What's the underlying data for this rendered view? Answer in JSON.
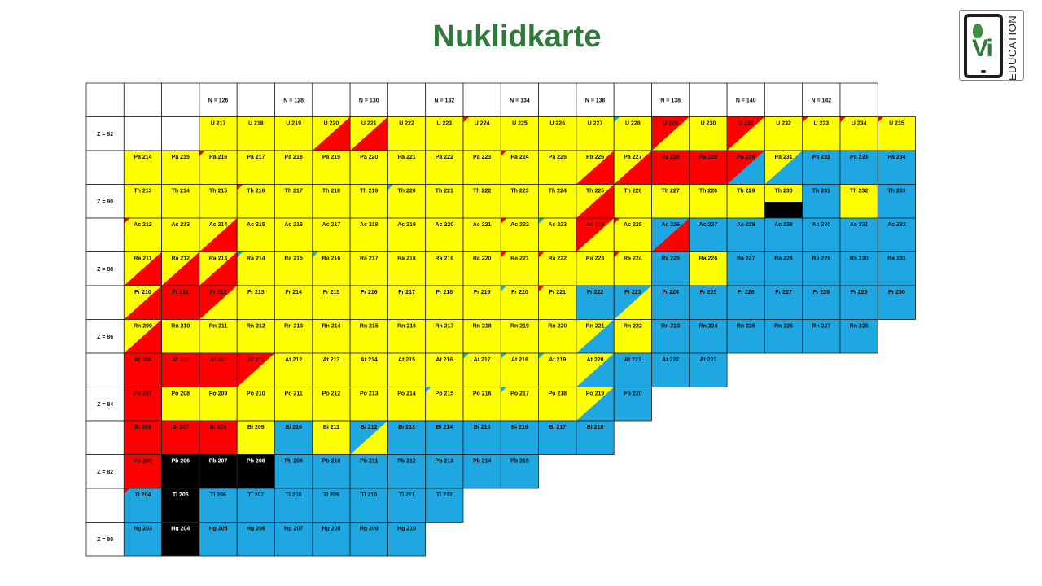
{
  "title": "Nuklidkarte",
  "logo": {
    "letters": "Vi",
    "subtitle": "EDUCATION"
  },
  "colors": {
    "Y": "#ffff00",
    "R": "#ff0000",
    "B": "#1ea7e1",
    "K": "#000000",
    "W": "#ffffff",
    "grid": "#222222",
    "title": "#2f7a3b"
  },
  "legend_note": "cell codes: Y yellow, R red, B blue, K black; two letters = split cell (upper-left / lower-right); a third letter marks the corner triangle colour",
  "chart_data": {
    "type": "table",
    "n_headers": [
      "",
      "",
      "",
      "N = 126",
      "",
      "N = 128",
      "",
      "N = 130",
      "",
      "N = 132",
      "",
      "N = 134",
      "",
      "N = 136",
      "",
      "N = 138",
      "",
      "N = 140",
      "",
      "N = 142",
      ""
    ],
    "rows": [
      {
        "z": "Z = 92",
        "start": 3,
        "cells": [
          [
            "U 217",
            "Y"
          ],
          [
            "U 218",
            "Y"
          ],
          [
            "U 219",
            "Y"
          ],
          [
            "U 220",
            "YR"
          ],
          [
            "U 221",
            "YR"
          ],
          [
            "U 222",
            "Y"
          ],
          [
            "U 223",
            "Y"
          ],
          [
            "U 224",
            "Y:R"
          ],
          [
            "U 225",
            "Y"
          ],
          [
            "U 226",
            "Y"
          ],
          [
            "U 227",
            "Y"
          ],
          [
            "U 228",
            "Y:B"
          ],
          [
            "U 229",
            "RY"
          ],
          [
            "U 230",
            "Y"
          ],
          [
            "U 231",
            "RY"
          ],
          [
            "U 232",
            "Y"
          ],
          [
            "U 233",
            "Y:R"
          ],
          [
            "U 234",
            "Y:R"
          ],
          [
            "U 235",
            "Y:R"
          ]
        ]
      },
      {
        "z": "",
        "start": 1,
        "cells": [
          [
            "Pa 214",
            "Y"
          ],
          [
            "Pa 215",
            "Y"
          ],
          [
            "Pa 216",
            "Y:R"
          ],
          [
            "Pa 217",
            "Y"
          ],
          [
            "Pa 218",
            "Y"
          ],
          [
            "Pa 219",
            "Y"
          ],
          [
            "Pa 220",
            "Y"
          ],
          [
            "Pa 221",
            "Y"
          ],
          [
            "Pa 222",
            "Y"
          ],
          [
            "Pa 223",
            "Y"
          ],
          [
            "Pa 224",
            "Y:R"
          ],
          [
            "Pa 225",
            "Y"
          ],
          [
            "Pa 226",
            "YR"
          ],
          [
            "Pa 227",
            "YR"
          ],
          [
            "Pa 228",
            "R"
          ],
          [
            "Pa 229",
            "R"
          ],
          [
            "Pa 230",
            "RB"
          ],
          [
            "Pa 231",
            "YB"
          ],
          [
            "Pa 232",
            "B"
          ],
          [
            "Pa 233",
            "B"
          ],
          [
            "Pa 234",
            "B"
          ]
        ]
      },
      {
        "z": "Z = 90",
        "start": 1,
        "cells": [
          [
            "Th 213",
            "Y"
          ],
          [
            "Th 214",
            "Y"
          ],
          [
            "Th 215",
            "Y"
          ],
          [
            "Th 216",
            "Y:R"
          ],
          [
            "Th 217",
            "Y"
          ],
          [
            "Th 218",
            "Y"
          ],
          [
            "Th 219",
            "Y"
          ],
          [
            "Th 220",
            "Y:B"
          ],
          [
            "Th 221",
            "Y"
          ],
          [
            "Th 222",
            "Y"
          ],
          [
            "Th 223",
            "Y"
          ],
          [
            "Th 224",
            "Y"
          ],
          [
            "Th 225",
            "YR"
          ],
          [
            "Th 226",
            "Y"
          ],
          [
            "Th 227",
            "Y"
          ],
          [
            "Th 228",
            "Y"
          ],
          [
            "Th 229",
            "Y"
          ],
          [
            "Th 230",
            "Y/K"
          ],
          [
            "Th 231",
            "B"
          ],
          [
            "Th 232",
            "Y"
          ],
          [
            "Th 233",
            "B"
          ]
        ]
      },
      {
        "z": "",
        "start": 1,
        "cells": [
          [
            "Ac 212",
            "Y:R"
          ],
          [
            "Ac 213",
            "Y"
          ],
          [
            "Ac 214",
            "YR"
          ],
          [
            "Ac 215",
            "Y"
          ],
          [
            "Ac 216",
            "Y"
          ],
          [
            "Ac 217",
            "Y"
          ],
          [
            "Ac 218",
            "Y"
          ],
          [
            "Ac 219",
            "Y"
          ],
          [
            "Ac 220",
            "Y"
          ],
          [
            "Ac 221",
            "Y"
          ],
          [
            "Ac 222",
            "Y:R"
          ],
          [
            "Ac 223",
            "Y:B"
          ],
          [
            "Ac 224",
            "RY"
          ],
          [
            "Ac 225",
            "Y:R"
          ],
          [
            "Ac 226",
            "BR"
          ],
          [
            "Ac 227",
            "B"
          ],
          [
            "Ac 228",
            "B"
          ],
          [
            "Ac 229",
            "B"
          ],
          [
            "Ac 230",
            "B"
          ],
          [
            "Ac 231",
            "B"
          ],
          [
            "Ac 232",
            "B"
          ]
        ]
      },
      {
        "z": "Z = 88",
        "start": 1,
        "cells": [
          [
            "Ra 211",
            "YR"
          ],
          [
            "Ra 212",
            "YR"
          ],
          [
            "Ra 213",
            "YR"
          ],
          [
            "Ra 214",
            "Y:B"
          ],
          [
            "Ra 215",
            "Y"
          ],
          [
            "Ra 216",
            "Y:B"
          ],
          [
            "Ra 217",
            "Y"
          ],
          [
            "Ra 218",
            "Y"
          ],
          [
            "Ra 219",
            "Y"
          ],
          [
            "Ra 220",
            "Y"
          ],
          [
            "Ra 221",
            "Y:R"
          ],
          [
            "Ra 222",
            "Y:R"
          ],
          [
            "Ra 223",
            "Y"
          ],
          [
            "Ra 224",
            "Y:R"
          ],
          [
            "Ra 225",
            "B"
          ],
          [
            "Ra 226",
            "Y"
          ],
          [
            "Ra 227",
            "B"
          ],
          [
            "Ra 228",
            "B"
          ],
          [
            "Ra 229",
            "B"
          ],
          [
            "Ra 230",
            "B"
          ],
          [
            "Ra 231",
            "B"
          ]
        ]
      },
      {
        "z": "",
        "start": 1,
        "cells": [
          [
            "Fr 210",
            "YR"
          ],
          [
            "Fr 211",
            "R"
          ],
          [
            "Fr 212",
            "RY"
          ],
          [
            "Fr 213",
            "Y"
          ],
          [
            "Fr 214",
            "Y"
          ],
          [
            "Fr 215",
            "Y"
          ],
          [
            "Fr 216",
            "Y"
          ],
          [
            "Fr 217",
            "Y"
          ],
          [
            "Fr 218",
            "Y"
          ],
          [
            "Fr 219",
            "Y"
          ],
          [
            "Fr 220",
            "Y:B"
          ],
          [
            "Fr 221",
            "Y:R"
          ],
          [
            "Fr 222",
            "B"
          ],
          [
            "Fr 223",
            "BY"
          ],
          [
            "Fr 224",
            "B"
          ],
          [
            "Fr 225",
            "B"
          ],
          [
            "Fr 226",
            "B"
          ],
          [
            "Fr 227",
            "B"
          ],
          [
            "Fr 228",
            "B"
          ],
          [
            "Fr 229",
            "B"
          ],
          [
            "Fr 230",
            "B"
          ]
        ]
      },
      {
        "z": "Z = 86",
        "start": 1,
        "cells": [
          [
            "Rn 209",
            "YR"
          ],
          [
            "Rn 210",
            "Y"
          ],
          [
            "Rn 211",
            "Y"
          ],
          [
            "Rn 212",
            "Y"
          ],
          [
            "Rn 213",
            "Y"
          ],
          [
            "Rn 214",
            "Y"
          ],
          [
            "Rn 215",
            "Y"
          ],
          [
            "Rn 216",
            "Y"
          ],
          [
            "Rn 217",
            "Y"
          ],
          [
            "Rn 218",
            "Y"
          ],
          [
            "Rn 219",
            "Y"
          ],
          [
            "Rn 220",
            "Y"
          ],
          [
            "Rn 221",
            "YB"
          ],
          [
            "Rn 222",
            "Y"
          ],
          [
            "Rn 223",
            "B"
          ],
          [
            "Rn 224",
            "B"
          ],
          [
            "Rn 225",
            "B"
          ],
          [
            "Rn 226",
            "B"
          ],
          [
            "Rn 227",
            "B"
          ],
          [
            "Rn 228",
            "B"
          ]
        ]
      },
      {
        "z": "",
        "start": 1,
        "cells": [
          [
            "At 208",
            "R"
          ],
          [
            "At 209",
            "R"
          ],
          [
            "At 210",
            "R"
          ],
          [
            "At 211",
            "RY"
          ],
          [
            "At 212",
            "Y"
          ],
          [
            "At 213",
            "Y"
          ],
          [
            "At 214",
            "Y"
          ],
          [
            "At 215",
            "Y"
          ],
          [
            "At 216",
            "Y"
          ],
          [
            "At 217",
            "Y:B"
          ],
          [
            "At 218",
            "Y:B"
          ],
          [
            "At 219",
            "Y:B"
          ],
          [
            "At 220",
            "YB"
          ],
          [
            "At 221",
            "B"
          ],
          [
            "At 222",
            "B"
          ],
          [
            "At 223",
            "B"
          ]
        ]
      },
      {
        "z": "Z = 84",
        "start": 1,
        "cells": [
          [
            "Po 207",
            "R"
          ],
          [
            "Po 208",
            "Y"
          ],
          [
            "Po 209",
            "Y"
          ],
          [
            "Po 210",
            "Y"
          ],
          [
            "Po 211",
            "Y"
          ],
          [
            "Po 212",
            "Y"
          ],
          [
            "Po 213",
            "Y"
          ],
          [
            "Po 214",
            "Y"
          ],
          [
            "Po 215",
            "Y:B"
          ],
          [
            "Po 216",
            "Y"
          ],
          [
            "Po 217",
            "Y:B"
          ],
          [
            "Po 218",
            "Y"
          ],
          [
            "Po 219",
            "YB"
          ],
          [
            "Po 220",
            "B"
          ]
        ]
      },
      {
        "z": "",
        "start": 1,
        "cells": [
          [
            "Bi 206",
            "R"
          ],
          [
            "Bi 207",
            "R"
          ],
          [
            "Bi 208",
            "R"
          ],
          [
            "Bi 209",
            "Y"
          ],
          [
            "Bi 210",
            "B"
          ],
          [
            "Bi 211",
            "Y"
          ],
          [
            "Bi 212",
            "BY"
          ],
          [
            "Bi 213",
            "B"
          ],
          [
            "Bi 214",
            "B"
          ],
          [
            "Bi 215",
            "B"
          ],
          [
            "Bi 216",
            "B"
          ],
          [
            "Bi 217",
            "B"
          ],
          [
            "Bi 218",
            "B"
          ]
        ]
      },
      {
        "z": "Z = 82",
        "start": 1,
        "cells": [
          [
            "Pb 205",
            "R"
          ],
          [
            "Pb 206",
            "K"
          ],
          [
            "Pb 207",
            "K"
          ],
          [
            "Pb 208",
            "K"
          ],
          [
            "Pb 209",
            "B"
          ],
          [
            "Pb 210",
            "B"
          ],
          [
            "Pb 211",
            "B"
          ],
          [
            "Pb 212",
            "B"
          ],
          [
            "Pb 213",
            "B"
          ],
          [
            "Pb 214",
            "B"
          ],
          [
            "Pb 215",
            "B"
          ]
        ]
      },
      {
        "z": "",
        "start": 1,
        "cells": [
          [
            "Tl 204",
            "B:R"
          ],
          [
            "Tl 205",
            "K"
          ],
          [
            "Tl 206",
            "B"
          ],
          [
            "Tl 207",
            "B"
          ],
          [
            "Tl 208",
            "B"
          ],
          [
            "Tl 209",
            "B"
          ],
          [
            "Tl 210",
            "B"
          ],
          [
            "Tl 211",
            "B"
          ],
          [
            "Tl 212",
            "B"
          ]
        ]
      },
      {
        "z": "Z = 80",
        "start": 1,
        "cells": [
          [
            "Hg 203",
            "B"
          ],
          [
            "Hg 204",
            "K"
          ],
          [
            "Hg 205",
            "B"
          ],
          [
            "Hg 206",
            "B"
          ],
          [
            "Hg 207",
            "B"
          ],
          [
            "Hg 208",
            "B"
          ],
          [
            "Hg 209",
            "B"
          ],
          [
            "Hg 210",
            "B"
          ]
        ]
      }
    ]
  }
}
